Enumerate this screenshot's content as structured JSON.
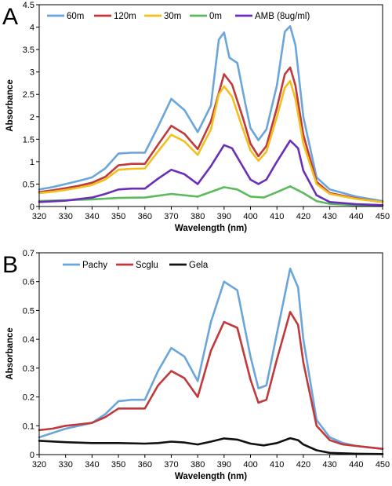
{
  "chart_data": [
    {
      "panel": "A",
      "type": "line",
      "xlabel": "Wavelength (nm)",
      "ylabel": "Absorbance",
      "xlim": [
        320,
        450
      ],
      "ylim": [
        0,
        4.5
      ],
      "xticks": [
        320,
        330,
        340,
        350,
        360,
        370,
        380,
        390,
        400,
        410,
        420,
        430,
        440,
        450
      ],
      "yticks": [
        0,
        0.5,
        1,
        1.5,
        2,
        2.5,
        3,
        3.5,
        4,
        4.5
      ],
      "grid": false,
      "legend": "top",
      "series": [
        {
          "name": "60m",
          "color": "#6aa5dc",
          "points": [
            [
              320,
              0.38
            ],
            [
              325,
              0.43
            ],
            [
              330,
              0.5
            ],
            [
              335,
              0.57
            ],
            [
              340,
              0.65
            ],
            [
              345,
              0.85
            ],
            [
              350,
              1.18
            ],
            [
              355,
              1.2
            ],
            [
              360,
              1.2
            ],
            [
              365,
              1.78
            ],
            [
              370,
              2.4
            ],
            [
              375,
              2.15
            ],
            [
              380,
              1.66
            ],
            [
              385,
              2.25
            ],
            [
              388,
              3.72
            ],
            [
              390,
              3.88
            ],
            [
              392,
              3.32
            ],
            [
              395,
              3.2
            ],
            [
              398,
              2.3
            ],
            [
              400,
              1.75
            ],
            [
              403,
              1.48
            ],
            [
              406,
              1.72
            ],
            [
              410,
              2.7
            ],
            [
              413,
              3.9
            ],
            [
              415,
              4.02
            ],
            [
              417,
              3.6
            ],
            [
              420,
              2.0
            ],
            [
              425,
              0.65
            ],
            [
              430,
              0.38
            ],
            [
              440,
              0.22
            ],
            [
              450,
              0.12
            ]
          ]
        },
        {
          "name": "120m",
          "color": "#c0393b",
          "points": [
            [
              320,
              0.32
            ],
            [
              325,
              0.36
            ],
            [
              330,
              0.41
            ],
            [
              335,
              0.46
            ],
            [
              340,
              0.53
            ],
            [
              345,
              0.66
            ],
            [
              350,
              0.92
            ],
            [
              355,
              0.95
            ],
            [
              360,
              0.95
            ],
            [
              365,
              1.38
            ],
            [
              370,
              1.8
            ],
            [
              375,
              1.62
            ],
            [
              380,
              1.28
            ],
            [
              385,
              1.9
            ],
            [
              390,
              2.95
            ],
            [
              393,
              2.72
            ],
            [
              397,
              2.0
            ],
            [
              400,
              1.4
            ],
            [
              403,
              1.12
            ],
            [
              406,
              1.35
            ],
            [
              410,
              2.2
            ],
            [
              413,
              2.95
            ],
            [
              415,
              3.1
            ],
            [
              417,
              2.7
            ],
            [
              420,
              1.6
            ],
            [
              425,
              0.55
            ],
            [
              430,
              0.3
            ],
            [
              440,
              0.18
            ],
            [
              450,
              0.1
            ]
          ]
        },
        {
          "name": "30m",
          "color": "#f2c01e",
          "points": [
            [
              320,
              0.3
            ],
            [
              325,
              0.33
            ],
            [
              330,
              0.37
            ],
            [
              335,
              0.42
            ],
            [
              340,
              0.48
            ],
            [
              345,
              0.6
            ],
            [
              350,
              0.82
            ],
            [
              355,
              0.84
            ],
            [
              360,
              0.85
            ],
            [
              365,
              1.23
            ],
            [
              370,
              1.6
            ],
            [
              375,
              1.45
            ],
            [
              380,
              1.15
            ],
            [
              385,
              1.72
            ],
            [
              388,
              2.5
            ],
            [
              390,
              2.68
            ],
            [
              393,
              2.45
            ],
            [
              397,
              1.75
            ],
            [
              400,
              1.25
            ],
            [
              403,
              1.02
            ],
            [
              406,
              1.22
            ],
            [
              410,
              2.0
            ],
            [
              413,
              2.65
            ],
            [
              415,
              2.8
            ],
            [
              417,
              2.4
            ],
            [
              420,
              1.4
            ],
            [
              425,
              0.5
            ],
            [
              430,
              0.28
            ],
            [
              440,
              0.17
            ],
            [
              450,
              0.1
            ]
          ]
        },
        {
          "name": "0m",
          "color": "#5cba5c",
          "points": [
            [
              320,
              0.12
            ],
            [
              330,
              0.14
            ],
            [
              340,
              0.16
            ],
            [
              350,
              0.19
            ],
            [
              360,
              0.2
            ],
            [
              370,
              0.28
            ],
            [
              380,
              0.22
            ],
            [
              390,
              0.43
            ],
            [
              395,
              0.38
            ],
            [
              400,
              0.22
            ],
            [
              405,
              0.2
            ],
            [
              410,
              0.32
            ],
            [
              415,
              0.45
            ],
            [
              420,
              0.3
            ],
            [
              425,
              0.12
            ],
            [
              430,
              0.06
            ],
            [
              440,
              0.03
            ],
            [
              450,
              0.02
            ]
          ]
        },
        {
          "name": "AMB (8ug/ml)",
          "color": "#6a2fb8",
          "points": [
            [
              320,
              0.1
            ],
            [
              330,
              0.13
            ],
            [
              340,
              0.2
            ],
            [
              345,
              0.28
            ],
            [
              350,
              0.38
            ],
            [
              355,
              0.4
            ],
            [
              360,
              0.4
            ],
            [
              365,
              0.62
            ],
            [
              370,
              0.82
            ],
            [
              375,
              0.72
            ],
            [
              380,
              0.5
            ],
            [
              385,
              0.9
            ],
            [
              390,
              1.37
            ],
            [
              393,
              1.3
            ],
            [
              397,
              0.9
            ],
            [
              400,
              0.6
            ],
            [
              403,
              0.5
            ],
            [
              406,
              0.6
            ],
            [
              410,
              1.0
            ],
            [
              415,
              1.47
            ],
            [
              418,
              1.3
            ],
            [
              420,
              0.8
            ],
            [
              425,
              0.25
            ],
            [
              430,
              0.1
            ],
            [
              440,
              0.05
            ],
            [
              450,
              0.03
            ]
          ]
        }
      ]
    },
    {
      "panel": "B",
      "type": "line",
      "xlabel": "Wavelength (nm)",
      "ylabel": "Absorbance",
      "xlim": [
        320,
        450
      ],
      "ylim": [
        0,
        0.7
      ],
      "xticks": [
        320,
        330,
        340,
        350,
        360,
        370,
        380,
        390,
        400,
        410,
        420,
        430,
        440,
        450
      ],
      "yticks": [
        0,
        0.1,
        0.2,
        0.3,
        0.4,
        0.5,
        0.6,
        0.7
      ],
      "grid": false,
      "legend": "top-left",
      "series": [
        {
          "name": "Pachy",
          "color": "#6aa5dc",
          "points": [
            [
              320,
              0.06
            ],
            [
              325,
              0.075
            ],
            [
              330,
              0.09
            ],
            [
              335,
              0.1
            ],
            [
              340,
              0.11
            ],
            [
              345,
              0.14
            ],
            [
              350,
              0.185
            ],
            [
              355,
              0.19
            ],
            [
              360,
              0.19
            ],
            [
              365,
              0.29
            ],
            [
              370,
              0.37
            ],
            [
              375,
              0.34
            ],
            [
              380,
              0.255
            ],
            [
              385,
              0.46
            ],
            [
              390,
              0.6
            ],
            [
              395,
              0.57
            ],
            [
              400,
              0.34
            ],
            [
              403,
              0.23
            ],
            [
              406,
              0.24
            ],
            [
              410,
              0.42
            ],
            [
              415,
              0.645
            ],
            [
              418,
              0.58
            ],
            [
              420,
              0.4
            ],
            [
              425,
              0.12
            ],
            [
              430,
              0.06
            ],
            [
              435,
              0.04
            ],
            [
              440,
              0.03
            ],
            [
              450,
              0.02
            ]
          ]
        },
        {
          "name": "Scglu",
          "color": "#c0393b",
          "points": [
            [
              320,
              0.085
            ],
            [
              325,
              0.09
            ],
            [
              330,
              0.1
            ],
            [
              335,
              0.105
            ],
            [
              340,
              0.11
            ],
            [
              345,
              0.13
            ],
            [
              350,
              0.16
            ],
            [
              355,
              0.16
            ],
            [
              360,
              0.16
            ],
            [
              365,
              0.24
            ],
            [
              370,
              0.29
            ],
            [
              375,
              0.265
            ],
            [
              380,
              0.2
            ],
            [
              385,
              0.36
            ],
            [
              390,
              0.46
            ],
            [
              395,
              0.44
            ],
            [
              400,
              0.26
            ],
            [
              403,
              0.18
            ],
            [
              406,
              0.19
            ],
            [
              410,
              0.33
            ],
            [
              415,
              0.495
            ],
            [
              418,
              0.45
            ],
            [
              420,
              0.32
            ],
            [
              425,
              0.1
            ],
            [
              430,
              0.05
            ],
            [
              435,
              0.035
            ],
            [
              440,
              0.03
            ],
            [
              450,
              0.02
            ]
          ]
        },
        {
          "name": "Gela",
          "color": "#111111",
          "points": [
            [
              320,
              0.048
            ],
            [
              330,
              0.043
            ],
            [
              340,
              0.04
            ],
            [
              350,
              0.04
            ],
            [
              360,
              0.038
            ],
            [
              365,
              0.04
            ],
            [
              370,
              0.045
            ],
            [
              375,
              0.042
            ],
            [
              380,
              0.035
            ],
            [
              385,
              0.045
            ],
            [
              390,
              0.056
            ],
            [
              395,
              0.052
            ],
            [
              400,
              0.038
            ],
            [
              405,
              0.032
            ],
            [
              410,
              0.04
            ],
            [
              415,
              0.057
            ],
            [
              418,
              0.05
            ],
            [
              420,
              0.035
            ],
            [
              425,
              0.015
            ],
            [
              430,
              0.006
            ],
            [
              440,
              0.003
            ],
            [
              450,
              0.002
            ]
          ]
        }
      ]
    }
  ]
}
